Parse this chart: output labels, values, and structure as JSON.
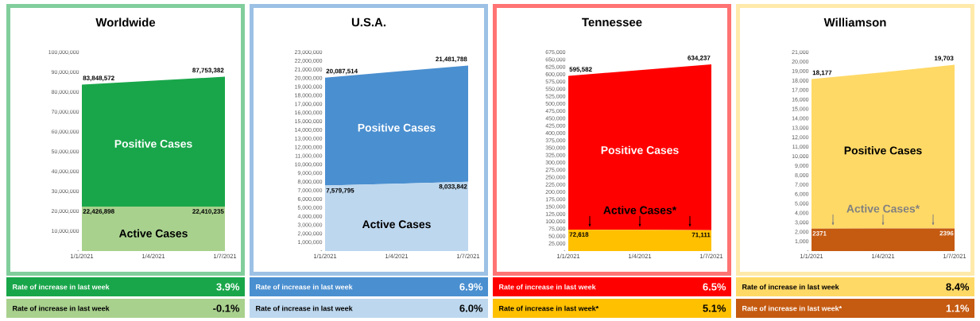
{
  "chart_data": [
    {
      "type": "area",
      "title": "Worldwide",
      "categories": [
        "1/1/2021",
        "1/4/2021",
        "1/7/2021"
      ],
      "ylim": [
        0,
        100000000
      ],
      "yticks": [
        {
          "value": 0,
          "label": "-"
        },
        {
          "value": 10000000,
          "label": "10,000,000"
        },
        {
          "value": 20000000,
          "label": "20,000,000"
        },
        {
          "value": 30000000,
          "label": "30,000,000"
        },
        {
          "value": 40000000,
          "label": "40,000,000"
        },
        {
          "value": 50000000,
          "label": "50,000,000"
        },
        {
          "value": 60000000,
          "label": "60,000,000"
        },
        {
          "value": 70000000,
          "label": "70,000,000"
        },
        {
          "value": 80000000,
          "label": "80,000,000"
        },
        {
          "value": 90000000,
          "label": "90,000,000"
        },
        {
          "value": 100000000,
          "label": "100,000,000"
        }
      ],
      "series": [
        {
          "name": "Positive Cases",
          "color": "#19a64a",
          "values": [
            83848572,
            85800000,
            87753382
          ],
          "value_labels": [
            "83,848,572",
            null,
            "87,753,382"
          ]
        },
        {
          "name": "Active Cases",
          "color": "#a9d18e",
          "values": [
            22426898,
            22400000,
            22410235
          ],
          "value_labels": [
            "22,426,898",
            null,
            "22,410,235"
          ]
        }
      ],
      "annotations": [
        "Rate of increase in last week",
        "3.9%",
        "Rate of increase in last week",
        "-0.1%"
      ]
    },
    {
      "type": "area",
      "title": "U.S.A.",
      "categories": [
        "1/1/2021",
        "1/4/2021",
        "1/7/2021"
      ],
      "ylim": [
        0,
        23000000
      ],
      "yticks": [
        {
          "value": 0,
          "label": "-"
        },
        {
          "value": 1000000,
          "label": "1,000,000"
        },
        {
          "value": 2000000,
          "label": "2,000,000"
        },
        {
          "value": 3000000,
          "label": "3,000,000"
        },
        {
          "value": 4000000,
          "label": "4,000,000"
        },
        {
          "value": 5000000,
          "label": "5,000,000"
        },
        {
          "value": 6000000,
          "label": "6,000,000"
        },
        {
          "value": 7000000,
          "label": "7,000,000"
        },
        {
          "value": 8000000,
          "label": "8,000,000"
        },
        {
          "value": 9000000,
          "label": "9,000,000"
        },
        {
          "value": 10000000,
          "label": "10,000,000"
        },
        {
          "value": 11000000,
          "label": "11,000,000"
        },
        {
          "value": 12000000,
          "label": "12,000,000"
        },
        {
          "value": 13000000,
          "label": "13,000,000"
        },
        {
          "value": 14000000,
          "label": "14,000,000"
        },
        {
          "value": 15000000,
          "label": "15,000,000"
        },
        {
          "value": 16000000,
          "label": "16,000,000"
        },
        {
          "value": 17000000,
          "label": "17,000,000"
        },
        {
          "value": 18000000,
          "label": "18,000,000"
        },
        {
          "value": 19000000,
          "label": "19,000,000"
        },
        {
          "value": 20000000,
          "label": "20,000,000"
        },
        {
          "value": 21000000,
          "label": "21,000,000"
        },
        {
          "value": 22000000,
          "label": "22,000,000"
        },
        {
          "value": 23000000,
          "label": "23,000,000"
        }
      ],
      "series": [
        {
          "name": "Positive Cases",
          "color": "#4a8fd0",
          "values": [
            20087514,
            20800000,
            21481788
          ],
          "value_labels": [
            "20,087,514",
            null,
            "21,481,788"
          ]
        },
        {
          "name": "Active Cases",
          "color": "#bdd7ee",
          "values": [
            7579795,
            7800000,
            8033842
          ],
          "value_labels": [
            "7,579,795",
            null,
            "8,033,842"
          ]
        }
      ],
      "annotations": [
        "Rate of increase in last week",
        "6.9%",
        "Rate of increase in last week",
        "6.0%"
      ]
    },
    {
      "type": "area",
      "title": "Tennessee",
      "categories": [
        "1/1/2021",
        "1/4/2021",
        "1/7/2021"
      ],
      "ylim": [
        0,
        675000
      ],
      "yticks": [
        {
          "value": 0,
          "label": "-"
        },
        {
          "value": 25000,
          "label": "25,000"
        },
        {
          "value": 50000,
          "label": "50,000"
        },
        {
          "value": 75000,
          "label": "75,000"
        },
        {
          "value": 100000,
          "label": "100,000"
        },
        {
          "value": 125000,
          "label": "125,000"
        },
        {
          "value": 150000,
          "label": "150,000"
        },
        {
          "value": 175000,
          "label": "175,000"
        },
        {
          "value": 200000,
          "label": "200,000"
        },
        {
          "value": 225000,
          "label": "225,000"
        },
        {
          "value": 250000,
          "label": "250,000"
        },
        {
          "value": 275000,
          "label": "275,000"
        },
        {
          "value": 300000,
          "label": "300,000"
        },
        {
          "value": 325000,
          "label": "325,000"
        },
        {
          "value": 350000,
          "label": "350,000"
        },
        {
          "value": 375000,
          "label": "375,000"
        },
        {
          "value": 400000,
          "label": "400,000"
        },
        {
          "value": 425000,
          "label": "425,000"
        },
        {
          "value": 450000,
          "label": "450,000"
        },
        {
          "value": 475000,
          "label": "475,000"
        },
        {
          "value": 500000,
          "label": "500,000"
        },
        {
          "value": 525000,
          "label": "525,000"
        },
        {
          "value": 550000,
          "label": "550,000"
        },
        {
          "value": 575000,
          "label": "575,000"
        },
        {
          "value": 600000,
          "label": "600,000"
        },
        {
          "value": 625000,
          "label": "625,000"
        },
        {
          "value": 650000,
          "label": "650,000"
        },
        {
          "value": 675000,
          "label": "675,000"
        }
      ],
      "series": [
        {
          "name": "Positive Cases",
          "color": "#ff0000",
          "values": [
            595582,
            615000,
            634237
          ],
          "value_labels": [
            "595,582",
            null,
            "634,237"
          ]
        },
        {
          "name": "Active Cases*",
          "color": "#ffc000",
          "values": [
            72618,
            72000,
            71111
          ],
          "value_labels": [
            "72,618",
            null,
            "71,111"
          ]
        }
      ],
      "annotations": [
        "Rate of increase in last week",
        "6.5%",
        "Rate of increase in last week*",
        "5.1%"
      ]
    },
    {
      "type": "area",
      "title": "Williamson",
      "categories": [
        "1/1/2021",
        "1/4/2021",
        "1/7/2021"
      ],
      "ylim": [
        0,
        21000
      ],
      "yticks": [
        {
          "value": 0,
          "label": "-"
        },
        {
          "value": 1000,
          "label": "1,000"
        },
        {
          "value": 2000,
          "label": "2,000"
        },
        {
          "value": 3000,
          "label": "3,000"
        },
        {
          "value": 4000,
          "label": "4,000"
        },
        {
          "value": 5000,
          "label": "5,000"
        },
        {
          "value": 6000,
          "label": "6,000"
        },
        {
          "value": 7000,
          "label": "7,000"
        },
        {
          "value": 8000,
          "label": "8,000"
        },
        {
          "value": 9000,
          "label": "9,000"
        },
        {
          "value": 10000,
          "label": "10,000"
        },
        {
          "value": 11000,
          "label": "11,000"
        },
        {
          "value": 12000,
          "label": "12,000"
        },
        {
          "value": 13000,
          "label": "13,000"
        },
        {
          "value": 14000,
          "label": "14,000"
        },
        {
          "value": 15000,
          "label": "15,000"
        },
        {
          "value": 16000,
          "label": "16,000"
        },
        {
          "value": 17000,
          "label": "17,000"
        },
        {
          "value": 18000,
          "label": "18,000"
        },
        {
          "value": 19000,
          "label": "19,000"
        },
        {
          "value": 20000,
          "label": "20,000"
        },
        {
          "value": 21000,
          "label": "21,000"
        }
      ],
      "series": [
        {
          "name": "Positive Cases",
          "color": "#ffd966",
          "values": [
            18177,
            18900,
            19703
          ],
          "value_labels": [
            "18,177",
            null,
            "19,703"
          ]
        },
        {
          "name": "Active Cases*",
          "color": "#c55a11",
          "values": [
            2371,
            2400,
            2396
          ],
          "value_labels": [
            "2371",
            null,
            "2396"
          ]
        }
      ],
      "annotations": [
        "Rate of increase in last week",
        "8.4%",
        "Rate of increase in last week*",
        "1.1%"
      ]
    }
  ]
}
